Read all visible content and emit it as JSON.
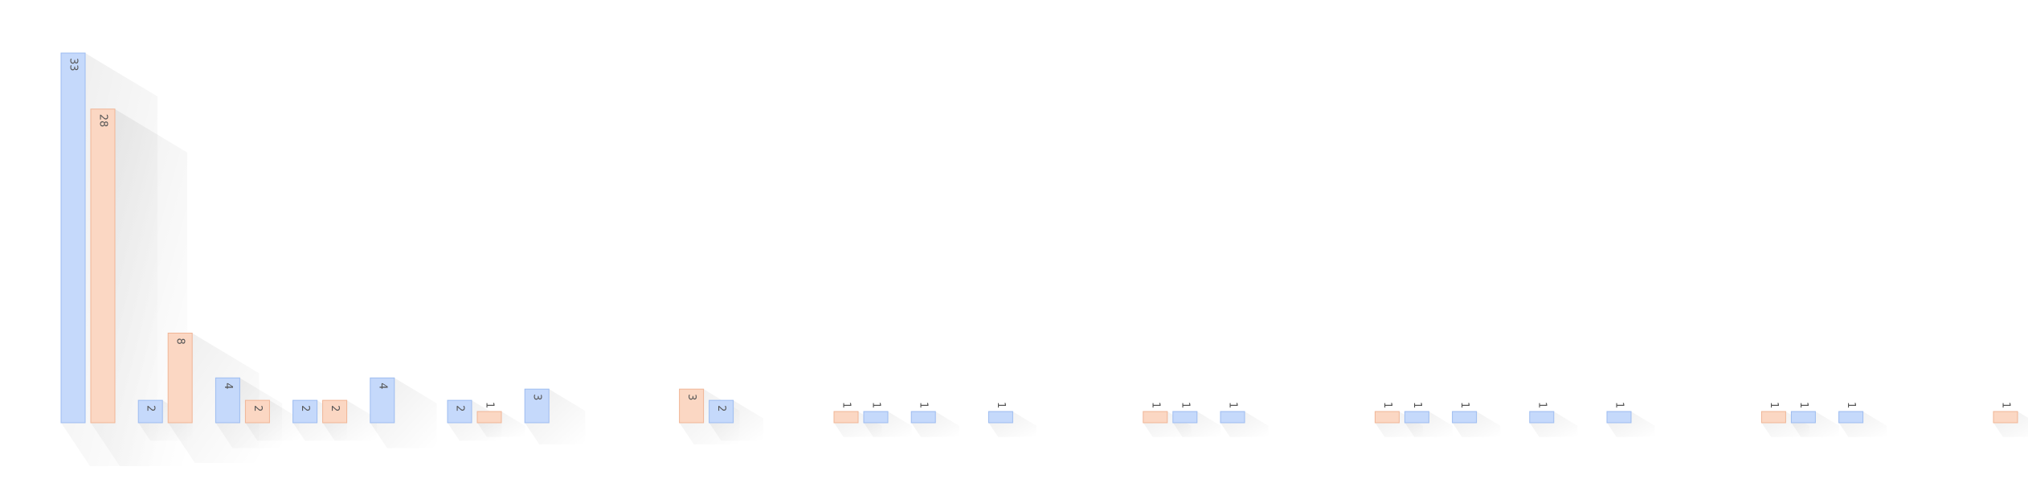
{
  "chart_data": {
    "type": "bar",
    "title": "",
    "xlabel": "",
    "ylabel": "",
    "ylim": [
      0,
      33
    ],
    "grid": false,
    "legend": "none",
    "series_colors": {
      "blue": {
        "fill": "#c5d9fb",
        "stroke": "#9dbcf0"
      },
      "orange": {
        "fill": "#fbd7c3",
        "stroke": "#f0b596"
      }
    },
    "bars": [
      {
        "group": 0,
        "series": "blue",
        "value": 33,
        "label": "33"
      },
      {
        "group": 0,
        "series": "orange",
        "value": 28,
        "label": "28"
      },
      {
        "group": 1,
        "series": "blue",
        "value": 2,
        "label": "2"
      },
      {
        "group": 1,
        "series": "orange",
        "value": 8,
        "label": "8"
      },
      {
        "group": 2,
        "series": "blue",
        "value": 4,
        "label": "4"
      },
      {
        "group": 2,
        "series": "orange",
        "value": 2,
        "label": "2"
      },
      {
        "group": 3,
        "series": "blue",
        "value": 2,
        "label": "2"
      },
      {
        "group": 3,
        "series": "orange",
        "value": 2,
        "label": "2"
      },
      {
        "group": 4,
        "series": "blue",
        "value": 4,
        "label": "4"
      },
      {
        "group": 5,
        "series": "blue",
        "value": 2,
        "label": "2"
      },
      {
        "group": 5,
        "series": "orange",
        "value": 1,
        "label": "1"
      },
      {
        "group": 6,
        "series": "blue",
        "value": 3,
        "label": "3"
      },
      {
        "group": 8,
        "series": "orange",
        "value": 3,
        "label": "3"
      },
      {
        "group": 8,
        "series": "blue",
        "value": 2,
        "label": "2"
      },
      {
        "group": 10,
        "series": "orange",
        "value": 1,
        "label": "1"
      },
      {
        "group": 10,
        "series": "blue",
        "value": 1,
        "label": "1"
      },
      {
        "group": 11,
        "series": "blue",
        "value": 1,
        "label": "1"
      },
      {
        "group": 12,
        "series": "blue",
        "value": 1,
        "label": "1"
      },
      {
        "group": 14,
        "series": "orange",
        "value": 1,
        "label": "1"
      },
      {
        "group": 14,
        "series": "blue",
        "value": 1,
        "label": "1"
      },
      {
        "group": 15,
        "series": "blue",
        "value": 1,
        "label": "1"
      },
      {
        "group": 17,
        "series": "orange",
        "value": 1,
        "label": "1"
      },
      {
        "group": 17,
        "series": "blue",
        "value": 1,
        "label": "1"
      },
      {
        "group": 18,
        "series": "blue",
        "value": 1,
        "label": "1"
      },
      {
        "group": 19,
        "series": "blue",
        "value": 1,
        "label": "1"
      },
      {
        "group": 20,
        "series": "blue",
        "value": 1,
        "label": "1"
      },
      {
        "group": 22,
        "series": "orange",
        "value": 1,
        "label": "1"
      },
      {
        "group": 22,
        "series": "blue",
        "value": 1,
        "label": "1"
      },
      {
        "group": 23,
        "series": "blue",
        "value": 1,
        "label": "1"
      },
      {
        "group": 25,
        "series": "orange",
        "value": 1,
        "label": "1"
      }
    ]
  }
}
